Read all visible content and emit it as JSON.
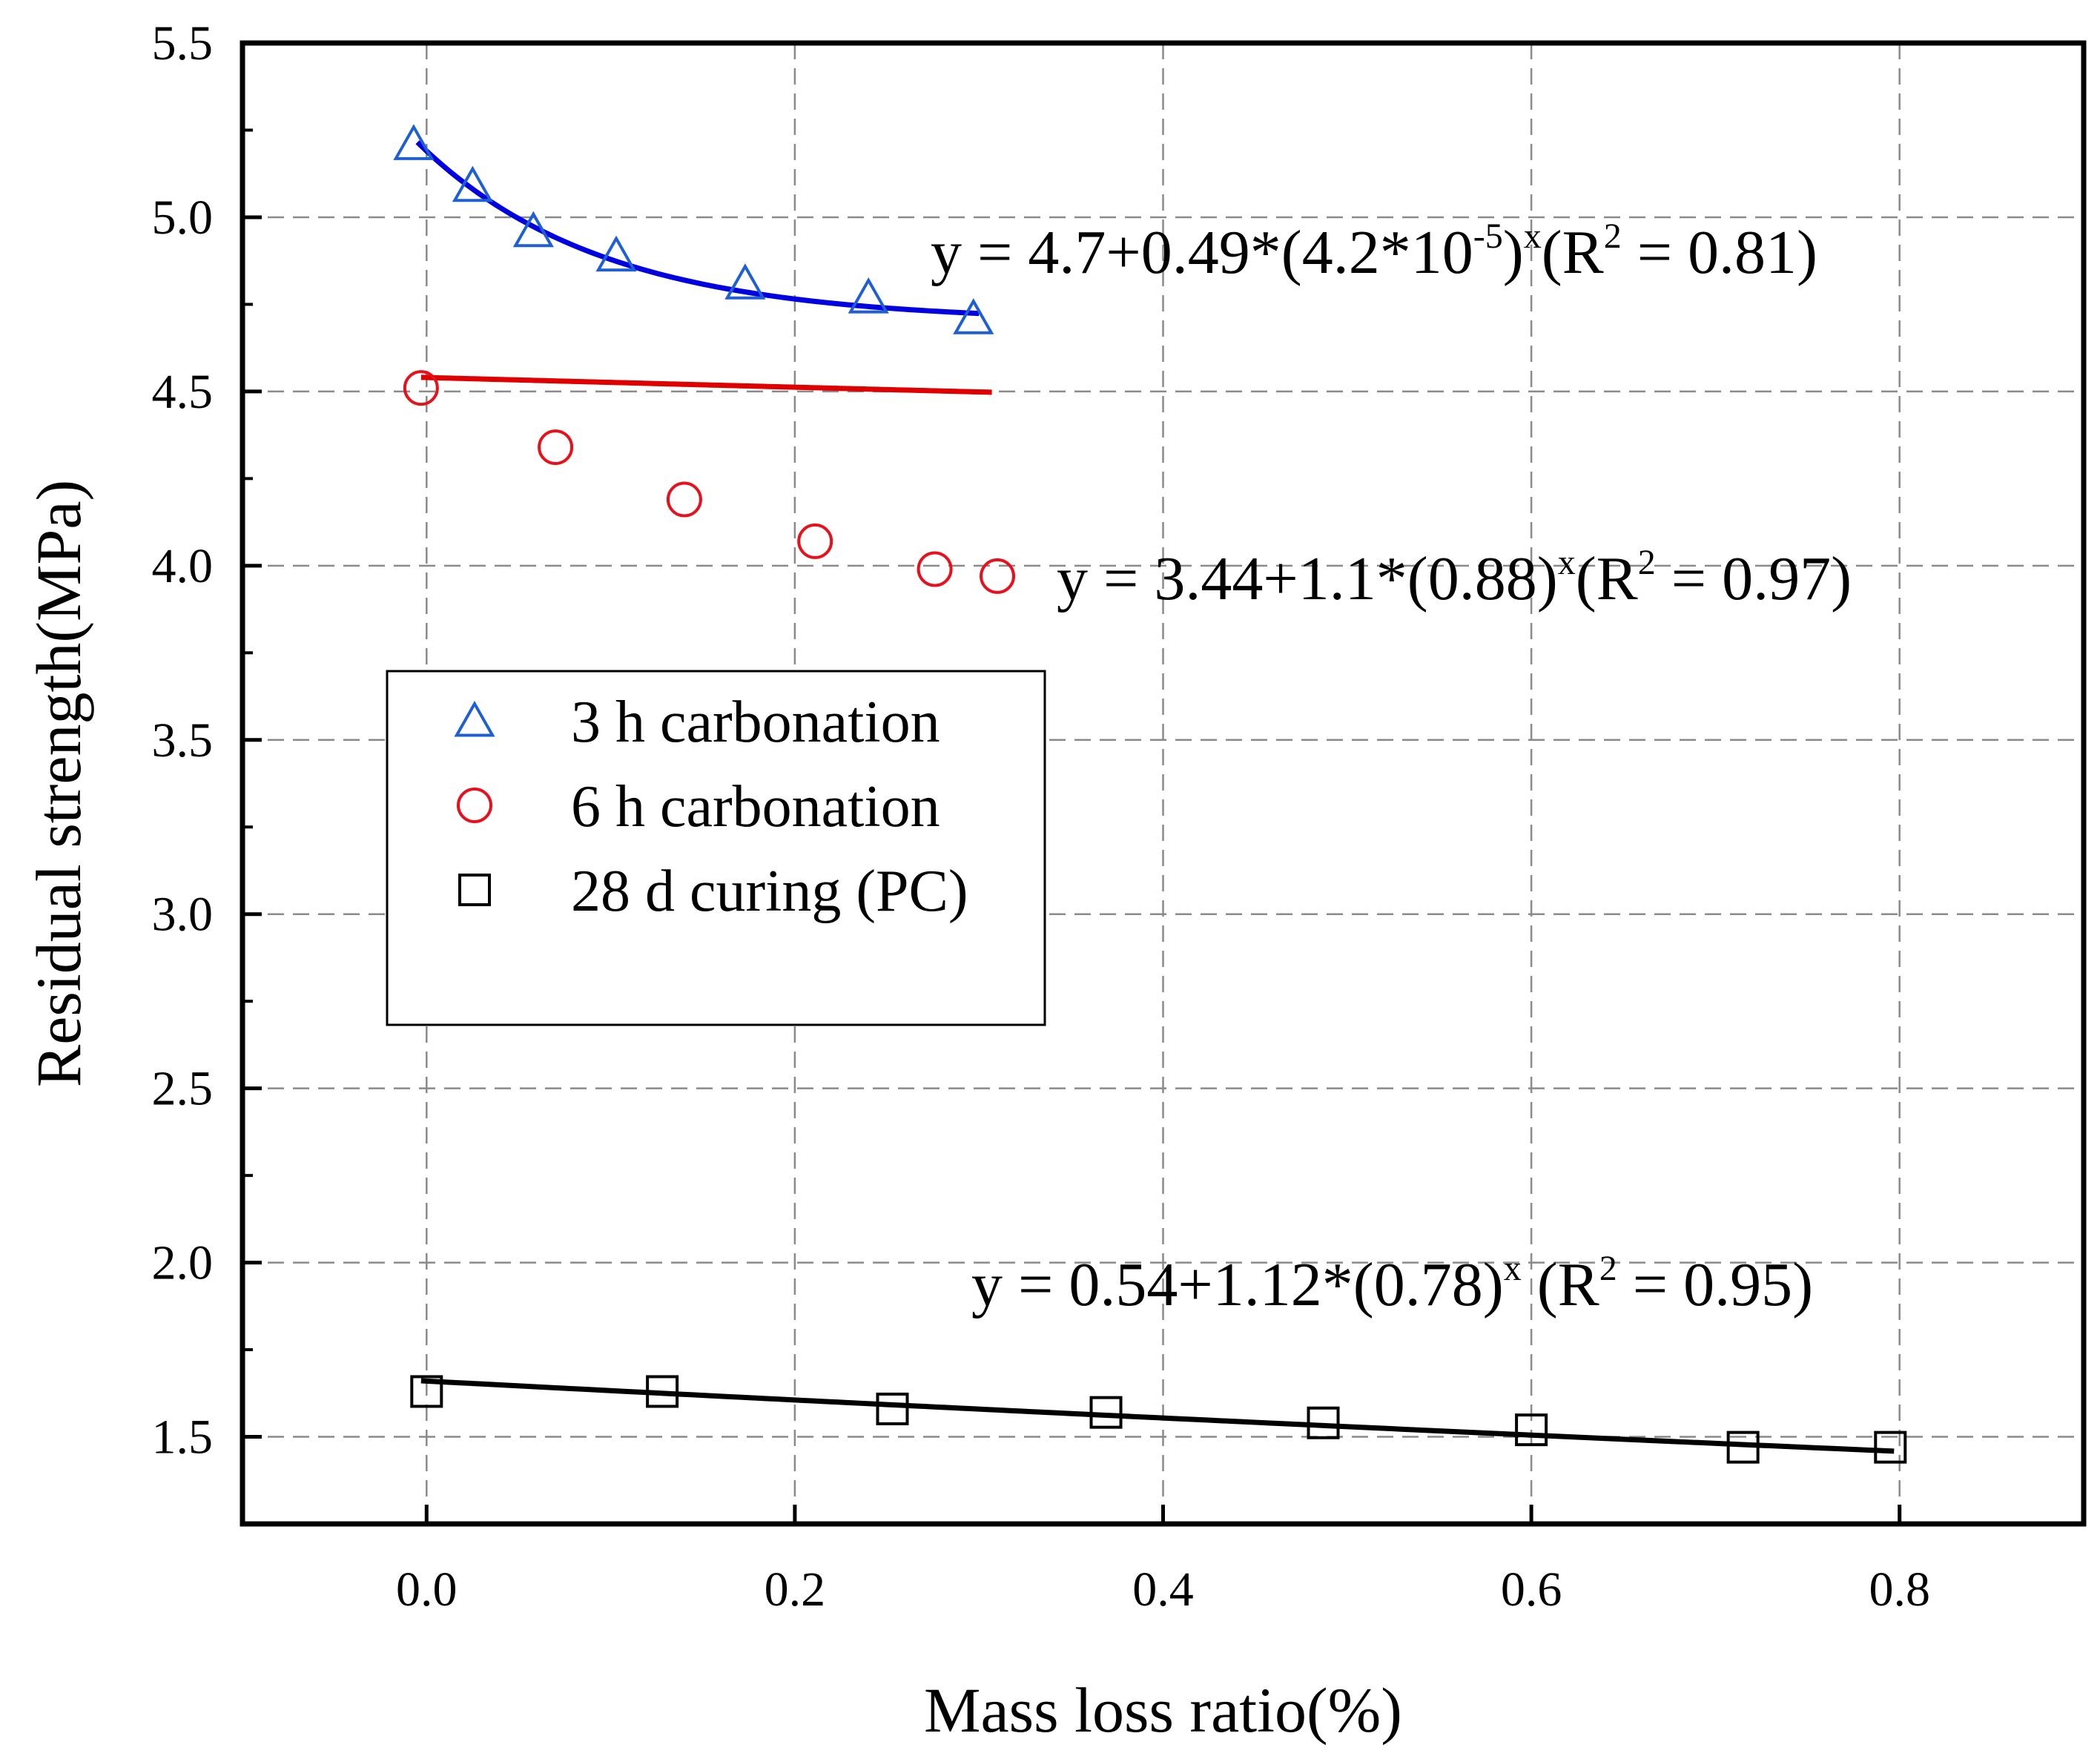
{
  "chart_data": {
    "type": "scatter",
    "title": "",
    "xlabel": "Mass loss ratio(%)",
    "ylabel": "Residual strength(MPa)",
    "xlim": [
      -0.1,
      0.9
    ],
    "ylim": [
      1.25,
      5.5
    ],
    "xticks": [
      0.0,
      0.2,
      0.4,
      0.6,
      0.8
    ],
    "yticks": [
      1.5,
      2.0,
      2.5,
      3.0,
      3.5,
      4.0,
      4.5,
      5.0,
      5.5
    ],
    "xtick_labels": [
      "0.0",
      "0.2",
      "0.4",
      "0.6",
      "0.8"
    ],
    "ytick_labels": [
      "1.5",
      "2.0",
      "2.5",
      "3.0",
      "3.5",
      "4.0",
      "4.5",
      "5.0",
      "5.5"
    ],
    "grid": true,
    "legend_position": "center-left",
    "series": [
      {
        "name": "3 h carbonation",
        "marker": "triangle",
        "color": "#1f5fd6",
        "fit_color": "#0000e0",
        "x": [
          -0.007,
          0.025,
          0.058,
          0.103,
          0.173,
          0.24,
          0.297
        ],
        "y": [
          5.21,
          5.09,
          4.96,
          4.89,
          4.81,
          4.77,
          4.71
        ],
        "fit": {
          "a": 4.7,
          "b": 0.49,
          "c": 4.2e-05,
          "x_range": [
            -0.005,
            0.3
          ]
        },
        "equation": {
          "main": "y = 4.7+0.49*(4.2*10",
          "exp": "-5",
          "close": ")",
          "x_sup": "x",
          "r_open": "(R",
          "r_sup": "2",
          "r_val": " = 0.81)"
        }
      },
      {
        "name": "6 h carbonation",
        "marker": "circle",
        "color": "#e8101a",
        "fit_color": "#e00000",
        "x": [
          -0.003,
          0.07,
          0.14,
          0.211,
          0.276,
          0.31
        ],
        "y": [
          4.51,
          4.34,
          4.19,
          4.07,
          3.99,
          3.97
        ],
        "fit": {
          "a": 3.44,
          "b": 1.1,
          "c": 0.88,
          "x_range": [
            -0.003,
            0.307
          ]
        },
        "equation": {
          "main": "y = 3.44+1.1*(0.88)",
          "x_sup": "x",
          "r_open": "(R",
          "r_sup": "2",
          "r_val": " = 0.97)"
        }
      },
      {
        "name": "28 d curing (PC)",
        "marker": "square",
        "color": "#000000",
        "fit_color": "#000000",
        "x": [
          0.0,
          0.128,
          0.253,
          0.369,
          0.487,
          0.6,
          0.715,
          0.795
        ],
        "y": [
          1.63,
          1.63,
          1.58,
          1.57,
          1.54,
          1.52,
          1.47,
          1.47
        ],
        "fit": {
          "a": 0.54,
          "b": 1.12,
          "c": 0.78,
          "x_range": [
            -0.003,
            0.797
          ]
        },
        "equation": {
          "main": "y = 0.54+1.12*(0.78)",
          "x_sup": "x",
          "r_open": "  (R",
          "r_sup": "2",
          "r_val": " = 0.95)"
        }
      }
    ]
  }
}
